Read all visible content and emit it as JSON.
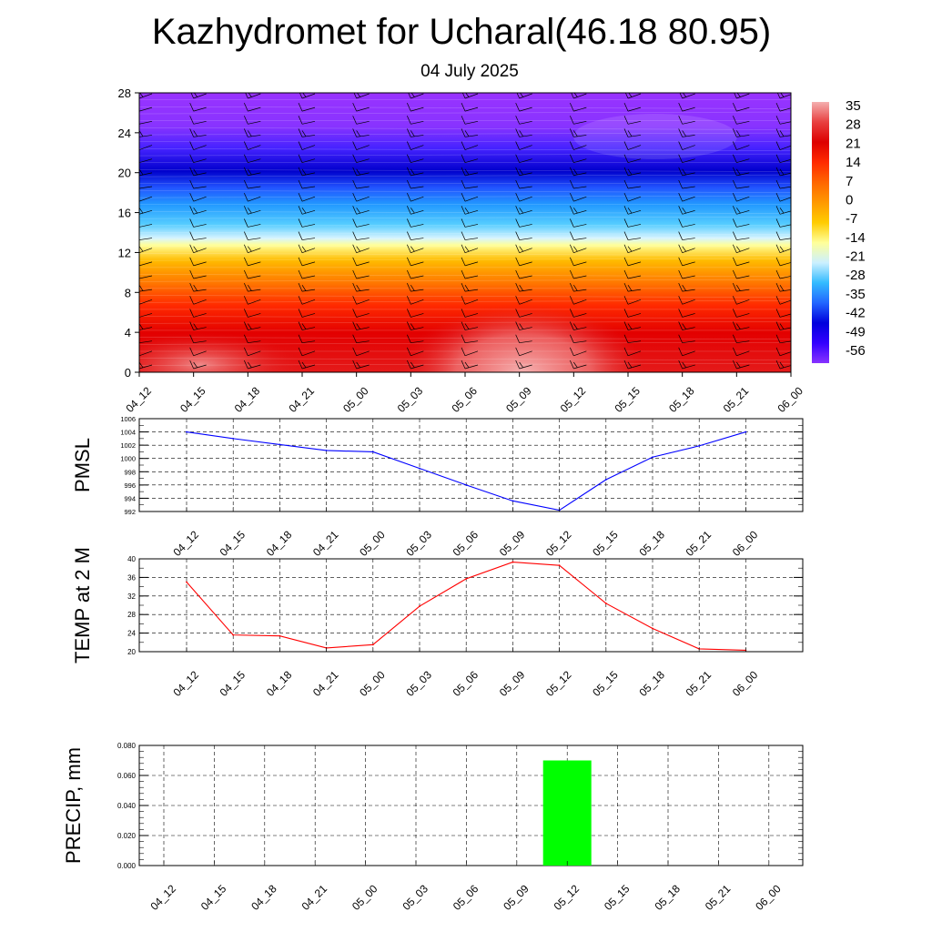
{
  "title": "Kazhydromet for Ucharal(46.18 80.95)",
  "subtitle": "04 July 2025",
  "time_labels": [
    "04_12",
    "04_15",
    "04_18",
    "04_21",
    "05_00",
    "05_03",
    "05_06",
    "05_09",
    "05_12",
    "05_15",
    "05_18",
    "05_21",
    "06_00"
  ],
  "colors": {
    "pmsl_line": "#0000ff",
    "temp_line": "#ff0000",
    "precip_bar": "#00ff00",
    "grid": "#000000"
  },
  "chart_data": [
    {
      "type": "heatmap",
      "name": "cross-section",
      "x": [
        "04_12",
        "04_15",
        "04_18",
        "04_21",
        "05_00",
        "05_03",
        "05_06",
        "05_09",
        "05_12",
        "05_15",
        "05_18",
        "05_21",
        "06_00"
      ],
      "y_ticks": [
        0,
        4,
        8,
        12,
        16,
        20,
        24,
        28
      ],
      "ylim": [
        0,
        28
      ],
      "colorbar_ticks": [
        "35",
        "28",
        "21",
        "14",
        "7",
        "0",
        "-7",
        "-14",
        "-21",
        "-28",
        "-35",
        "-42",
        "-49",
        "-56"
      ],
      "colorbar_range": [
        -60,
        38
      ],
      "colorbar_stops": [
        "#f4b0b0",
        "#e84040",
        "#dd0000",
        "#ff2a00",
        "#ff6600",
        "#ff9900",
        "#ffcc00",
        "#ffff99",
        "#ccf0ff",
        "#33bbff",
        "#2266ff",
        "#0000dd",
        "#3300ff",
        "#8833ff"
      ],
      "has_wind_barbs": true
    },
    {
      "type": "line",
      "name": "pmsl",
      "ylabel": "PMSL",
      "categories": [
        "04_12",
        "04_15",
        "04_18",
        "04_21",
        "05_00",
        "05_03",
        "05_06",
        "05_09",
        "05_12",
        "05_15",
        "05_18",
        "05_21",
        "06_00"
      ],
      "values": [
        1004.0,
        1003.0,
        1002.1,
        1001.2,
        1001.0,
        998.5,
        996.0,
        993.6,
        992.2,
        996.8,
        1000.2,
        1001.9,
        1004.0
      ],
      "ylim": [
        992,
        1006
      ],
      "yticks": [
        "992",
        "994",
        "996",
        "998",
        "1000",
        "1002",
        "1004",
        "1006"
      ],
      "grid": true
    },
    {
      "type": "line",
      "name": "temp",
      "ylabel": "TEMP at 2 M",
      "categories": [
        "04_12",
        "04_15",
        "04_18",
        "04_21",
        "05_00",
        "05_03",
        "05_06",
        "05_09",
        "05_12",
        "05_15",
        "05_18",
        "05_21",
        "06_00"
      ],
      "values": [
        35.0,
        23.6,
        23.4,
        20.8,
        21.5,
        29.8,
        35.7,
        39.3,
        38.6,
        30.4,
        25.0,
        20.6,
        20.3
      ],
      "ylim": [
        20,
        40
      ],
      "yticks": [
        "20",
        "24",
        "28",
        "32",
        "36",
        "40"
      ],
      "grid": true
    },
    {
      "type": "bar",
      "name": "precip",
      "ylabel": "PRECIP, mm",
      "categories": [
        "04_12",
        "04_15",
        "04_18",
        "04_21",
        "05_00",
        "05_03",
        "05_06",
        "05_09",
        "05_12",
        "05_15",
        "05_18",
        "05_21",
        "06_00"
      ],
      "values": [
        0,
        0,
        0,
        0,
        0,
        0,
        0,
        0,
        0.07,
        0,
        0,
        0,
        0
      ],
      "ylim": [
        0,
        0.08
      ],
      "yticks": [
        "0.000",
        "0.020",
        "0.040",
        "0.060",
        "0.080"
      ],
      "grid": true
    }
  ]
}
